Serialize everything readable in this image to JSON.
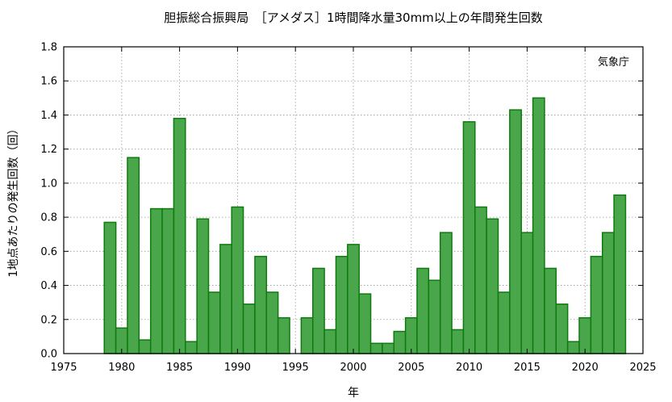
{
  "chart_data": {
    "type": "bar",
    "title": "胆振総合振興局　［アメダス］1時間降水量30mm以上の年間発生回数",
    "xlabel": "年",
    "ylabel": "1地点あたりの発生回数（回）",
    "annotation": "気象庁",
    "xlim": [
      1975,
      2025
    ],
    "ylim": [
      0,
      1.8
    ],
    "x_ticks": [
      1975,
      1980,
      1985,
      1990,
      1995,
      2000,
      2005,
      2010,
      2015,
      2020,
      2025
    ],
    "y_ticks": [
      "0.0",
      "0.2",
      "0.4",
      "0.6",
      "0.8",
      "1.0",
      "1.2",
      "1.4",
      "1.6",
      "1.8"
    ],
    "grid": true,
    "bar_fill_color": "#4aa64a",
    "bar_edge_color": "#0f7a0f",
    "years": [
      1979,
      1980,
      1981,
      1982,
      1983,
      1984,
      1985,
      1986,
      1987,
      1988,
      1989,
      1990,
      1991,
      1992,
      1993,
      1994,
      1995,
      1996,
      1997,
      1998,
      1999,
      2000,
      2001,
      2002,
      2003,
      2004,
      2005,
      2006,
      2007,
      2008,
      2009,
      2010,
      2011,
      2012,
      2013,
      2014,
      2015,
      2016,
      2017,
      2018,
      2019,
      2020,
      2021,
      2022,
      2023
    ],
    "values": [
      0.77,
      0.15,
      1.15,
      0.08,
      0.85,
      0.85,
      1.38,
      0.07,
      0.79,
      0.36,
      0.64,
      0.86,
      0.29,
      0.57,
      0.36,
      0.21,
      null,
      0.21,
      0.5,
      0.14,
      0.57,
      0.64,
      0.35,
      0.06,
      0.06,
      0.13,
      0.21,
      0.5,
      0.43,
      0.71,
      0.14,
      1.36,
      0.86,
      0.79,
      0.36,
      1.43,
      0.71,
      1.5,
      0.5,
      0.29,
      0.07,
      0.21,
      0.57,
      0.71,
      0.93
    ]
  }
}
